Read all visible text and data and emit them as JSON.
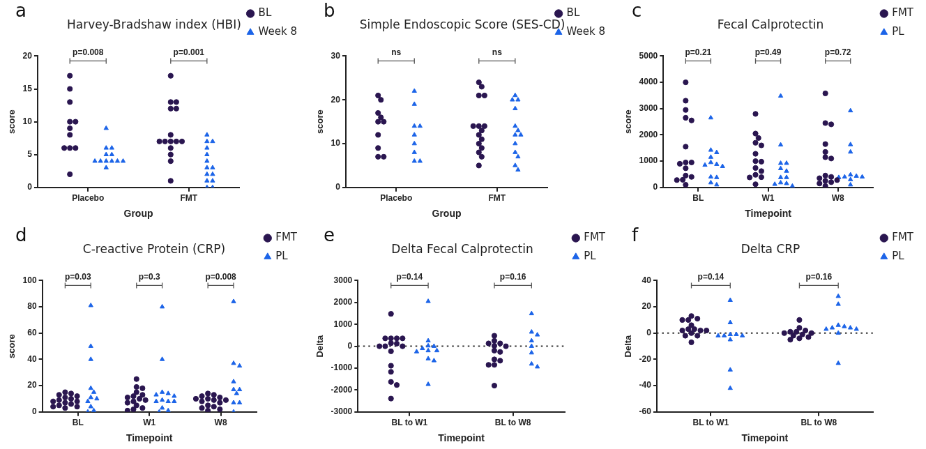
{
  "chart_data": [
    {
      "type": "scatter",
      "title": "Harvey-Bradshaw index (HBI)",
      "xlabel": "Group",
      "ylabel": "score",
      "categories": [
        "Placebo",
        "FMT"
      ],
      "ylim": [
        0,
        20
      ],
      "yticks": [
        0,
        5,
        10,
        15,
        20
      ],
      "legend": "right",
      "annotations": [
        "a",
        "p=0.008",
        "p=0.001"
      ],
      "series": [
        {
          "name": "BL",
          "color": "#2a1650",
          "marker": "circle",
          "x": [
            "Placebo",
            "Placebo",
            "Placebo",
            "Placebo",
            "Placebo",
            "Placebo",
            "Placebo",
            "Placebo",
            "Placebo",
            "Placebo",
            "Placebo",
            "FMT",
            "FMT",
            "FMT",
            "FMT",
            "FMT",
            "FMT",
            "FMT",
            "FMT",
            "FMT",
            "FMT",
            "FMT",
            "FMT",
            "FMT",
            "FMT",
            "FMT"
          ],
          "values": [
            17,
            15,
            13,
            10,
            10,
            9,
            8,
            6,
            6,
            6,
            2,
            17,
            13,
            13,
            12,
            12,
            8,
            7,
            7,
            7,
            7,
            7,
            6,
            5,
            4,
            1
          ]
        },
        {
          "name": "Week 8",
          "color": "#1c64e8",
          "marker": "triangle",
          "x": [
            "Placebo",
            "Placebo",
            "Placebo",
            "Placebo",
            "Placebo",
            "Placebo",
            "Placebo",
            "Placebo",
            "Placebo",
            "Placebo",
            "Placebo",
            "Placebo",
            "FMT",
            "FMT",
            "FMT",
            "FMT",
            "FMT",
            "FMT",
            "FMT",
            "FMT",
            "FMT",
            "FMT",
            "FMT",
            "FMT",
            "FMT",
            "FMT"
          ],
          "values": [
            9,
            6,
            6,
            5,
            5,
            4,
            4,
            4,
            4,
            4,
            4,
            3,
            8,
            7,
            7,
            6,
            5,
            4,
            3,
            3,
            2,
            2,
            1,
            1,
            0,
            0
          ]
        }
      ]
    },
    {
      "type": "scatter",
      "title": "Simple Endoscopic Score (SES-CD)",
      "xlabel": "Group",
      "ylabel": "score",
      "categories": [
        "Placebo",
        "FMT"
      ],
      "ylim": [
        0,
        30
      ],
      "yticks": [
        0,
        10,
        20,
        30
      ],
      "legend": "right",
      "annotations": [
        "b",
        "ns",
        "ns"
      ],
      "series": [
        {
          "name": "BL",
          "color": "#2a1650",
          "marker": "circle",
          "x": [
            "Placebo",
            "Placebo",
            "Placebo",
            "Placebo",
            "Placebo",
            "Placebo",
            "Placebo",
            "Placebo",
            "Placebo",
            "Placebo",
            "FMT",
            "FMT",
            "FMT",
            "FMT",
            "FMT",
            "FMT",
            "FMT",
            "FMT",
            "FMT",
            "FMT",
            "FMT",
            "FMT",
            "FMT",
            "FMT",
            "FMT"
          ],
          "values": [
            21,
            20,
            17,
            16,
            15,
            15,
            12,
            9,
            7,
            7,
            24,
            23,
            21,
            21,
            14,
            14,
            14,
            13,
            12,
            11,
            10,
            9,
            8,
            7,
            5
          ]
        },
        {
          "name": "Week 8",
          "color": "#1c64e8",
          "marker": "triangle",
          "x": [
            "Placebo",
            "Placebo",
            "Placebo",
            "Placebo",
            "Placebo",
            "Placebo",
            "Placebo",
            "Placebo",
            "Placebo",
            "FMT",
            "FMT",
            "FMT",
            "FMT",
            "FMT",
            "FMT",
            "FMT",
            "FMT",
            "FMT",
            "FMT",
            "FMT",
            "FMT",
            "FMT"
          ],
          "values": [
            22,
            19,
            14,
            14,
            12,
            10,
            8,
            6,
            6,
            21,
            20,
            20,
            18,
            14,
            13,
            12,
            12,
            10,
            8,
            7,
            5,
            4
          ]
        }
      ]
    },
    {
      "type": "scatter",
      "title": "Fecal Calprotectin",
      "xlabel": "Timepoint",
      "ylabel": "score",
      "categories": [
        "BL",
        "W1",
        "W8"
      ],
      "ylim": [
        0,
        5000
      ],
      "yticks": [
        0,
        1000,
        2000,
        3000,
        4000,
        5000
      ],
      "legend": "right",
      "annotations": [
        "c",
        "p=0.21",
        "p=0.49",
        "p=0.72"
      ],
      "series": [
        {
          "name": "FMT",
          "color": "#2a1650",
          "marker": "circle",
          "x": [
            "BL",
            "BL",
            "BL",
            "BL",
            "BL",
            "BL",
            "BL",
            "BL",
            "BL",
            "BL",
            "BL",
            "BL",
            "BL",
            "BL",
            "BL",
            "W1",
            "W1",
            "W1",
            "W1",
            "W1",
            "W1",
            "W1",
            "W1",
            "W1",
            "W1",
            "W1",
            "W1",
            "W1",
            "W1",
            "W8",
            "W8",
            "W8",
            "W8",
            "W8",
            "W8",
            "W8",
            "W8",
            "W8",
            "W8",
            "W8",
            "W8",
            "W8",
            "W8",
            "W8"
          ],
          "values": [
            4000,
            3300,
            2950,
            2650,
            2550,
            1550,
            950,
            950,
            900,
            730,
            450,
            400,
            290,
            280,
            100,
            2800,
            2050,
            1880,
            1700,
            1600,
            1280,
            1000,
            980,
            740,
            620,
            480,
            390,
            380,
            120,
            3580,
            2450,
            2400,
            1650,
            1350,
            1150,
            1100,
            450,
            400,
            350,
            280,
            250,
            200,
            150,
            50
          ]
        },
        {
          "name": "PL",
          "color": "#1c64e8",
          "marker": "triangle",
          "x": [
            "BL",
            "BL",
            "BL",
            "BL",
            "BL",
            "BL",
            "BL",
            "BL",
            "BL",
            "BL",
            "BL",
            "BL",
            "W1",
            "W1",
            "W1",
            "W1",
            "W1",
            "W1",
            "W1",
            "W1",
            "W1",
            "W1",
            "W1",
            "W1",
            "W8",
            "W8",
            "W8",
            "W8",
            "W8",
            "W8",
            "W8",
            "W8",
            "W8",
            "W8"
          ],
          "values": [
            2650,
            1420,
            1330,
            1150,
            950,
            880,
            850,
            800,
            400,
            380,
            180,
            100,
            3480,
            1620,
            920,
            920,
            720,
            620,
            380,
            380,
            180,
            150,
            120,
            50,
            2920,
            1630,
            1350,
            480,
            430,
            400,
            400,
            380,
            300,
            100
          ]
        }
      ]
    },
    {
      "type": "scatter",
      "title": "C-reactive Protein (CRP)",
      "xlabel": "Timepoint",
      "ylabel": "score",
      "categories": [
        "BL",
        "W1",
        "W8"
      ],
      "ylim": [
        0,
        100
      ],
      "yticks": [
        0,
        20,
        40,
        60,
        80,
        100
      ],
      "legend": "right",
      "annotations": [
        "d",
        "p=0.03",
        "p=0.3",
        "p=0.008"
      ],
      "series": [
        {
          "name": "FMT",
          "color": "#2a1650",
          "marker": "circle",
          "x": [
            "BL",
            "BL",
            "BL",
            "BL",
            "BL",
            "BL",
            "BL",
            "BL",
            "BL",
            "BL",
            "BL",
            "BL",
            "BL",
            "BL",
            "BL",
            "W1",
            "W1",
            "W1",
            "W1",
            "W1",
            "W1",
            "W1",
            "W1",
            "W1",
            "W1",
            "W1",
            "W1",
            "W1",
            "W1",
            "W1",
            "W8",
            "W8",
            "W8",
            "W8",
            "W8",
            "W8",
            "W8",
            "W8",
            "W8",
            "W8",
            "W8",
            "W8",
            "W8",
            "W8",
            "W8"
          ],
          "values": [
            15,
            14,
            13,
            12,
            11,
            10,
            9,
            8,
            8,
            7,
            6,
            5,
            4,
            4,
            3,
            25,
            19,
            18,
            15,
            13,
            12,
            11,
            10,
            9,
            8,
            7,
            5,
            3,
            2,
            1,
            14,
            13,
            12,
            11,
            10,
            10,
            9,
            9,
            8,
            7,
            5,
            4,
            3,
            2,
            1
          ]
        },
        {
          "name": "PL",
          "color": "#1c64e8",
          "marker": "triangle",
          "x": [
            "BL",
            "BL",
            "BL",
            "BL",
            "BL",
            "BL",
            "BL",
            "BL",
            "BL",
            "BL",
            "BL",
            "W1",
            "W1",
            "W1",
            "W1",
            "W1",
            "W1",
            "W1",
            "W1",
            "W1",
            "W1",
            "W1",
            "W1",
            "W1",
            "W8",
            "W8",
            "W8",
            "W8",
            "W8",
            "W8",
            "W8",
            "W8",
            "W8",
            "W8"
          ],
          "values": [
            81,
            50,
            40,
            18,
            15,
            11,
            10,
            8,
            4,
            1,
            0,
            80,
            40,
            15,
            14,
            13,
            12,
            9,
            8,
            8,
            8,
            3,
            1,
            0,
            84,
            37,
            35,
            23,
            17,
            17,
            14,
            7,
            7,
            0
          ]
        }
      ]
    },
    {
      "type": "scatter",
      "title": "Delta Fecal Calprotectin",
      "xlabel": "Timepoint",
      "ylabel": "Delta",
      "categories": [
        "BL to W1",
        "BL to W8"
      ],
      "ylim": [
        -3000,
        3000
      ],
      "yticks": [
        -3000,
        -2000,
        -1000,
        0,
        1000,
        2000,
        3000
      ],
      "legend": "right",
      "ref_lines": [
        {
          "axis": "y",
          "value": 0,
          "line_style": "dotted"
        }
      ],
      "annotations": [
        "e",
        "p=0.14",
        "p=0.16"
      ],
      "series": [
        {
          "name": "FMT",
          "color": "#2a1650",
          "marker": "circle",
          "x": [
            "BL to W1",
            "BL to W1",
            "BL to W1",
            "BL to W1",
            "BL to W1",
            "BL to W1",
            "BL to W1",
            "BL to W1",
            "BL to W1",
            "BL to W1",
            "BL to W1",
            "BL to W1",
            "BL to W1",
            "BL to W1",
            "BL to W1",
            "BL to W1",
            "BL to W8",
            "BL to W8",
            "BL to W8",
            "BL to W8",
            "BL to W8",
            "BL to W8",
            "BL to W8",
            "BL to W8",
            "BL to W8",
            "BL to W8",
            "BL to W8",
            "BL to W8",
            "BL to W8"
          ],
          "values": [
            1480,
            360,
            360,
            360,
            360,
            140,
            120,
            0,
            0,
            0,
            -230,
            -890,
            -1170,
            -1630,
            -1770,
            -2390,
            480,
            250,
            130,
            130,
            20,
            0,
            -200,
            -260,
            -600,
            -660,
            -850,
            -850,
            -1800
          ]
        },
        {
          "name": "PL",
          "color": "#1c64e8",
          "marker": "triangle",
          "x": [
            "BL to W1",
            "BL to W1",
            "BL to W1",
            "BL to W1",
            "BL to W1",
            "BL to W1",
            "BL to W1",
            "BL to W1",
            "BL to W1",
            "BL to W1",
            "BL to W1",
            "BL to W8",
            "BL to W8",
            "BL to W8",
            "BL to W8",
            "BL to W8",
            "BL to W8",
            "BL to W8",
            "BL to W8"
          ],
          "values": [
            2050,
            250,
            20,
            0,
            -100,
            -200,
            -200,
            -250,
            -570,
            -660,
            -1740,
            1490,
            650,
            520,
            250,
            0,
            -300,
            -810,
            -940
          ]
        }
      ]
    },
    {
      "type": "scatter",
      "title": "Delta CRP",
      "xlabel": "Timepoint",
      "ylabel": "Delta",
      "categories": [
        "BL to W1",
        "BL to W8"
      ],
      "ylim": [
        -60,
        40
      ],
      "yticks": [
        -60,
        -40,
        -20,
        0,
        20,
        40
      ],
      "legend": "right",
      "ref_lines": [
        {
          "axis": "y",
          "value": 0,
          "line_style": "dotted"
        }
      ],
      "annotations": [
        "f",
        "p=0.14",
        "p=0.16"
      ],
      "series": [
        {
          "name": "FMT",
          "color": "#2a1650",
          "marker": "circle",
          "x": [
            "BL to W1",
            "BL to W1",
            "BL to W1",
            "BL to W1",
            "BL to W1",
            "BL to W1",
            "BL to W1",
            "BL to W1",
            "BL to W1",
            "BL to W1",
            "BL to W1",
            "BL to W1",
            "BL to W1",
            "BL to W1",
            "BL to W8",
            "BL to W8",
            "BL to W8",
            "BL to W8",
            "BL to W8",
            "BL to W8",
            "BL to W8",
            "BL to W8",
            "BL to W8",
            "BL to W8",
            "BL to W8",
            "BL to W8"
          ],
          "values": [
            13,
            11,
            10,
            10,
            6,
            3,
            3,
            2,
            2,
            2,
            0,
            -2,
            -2,
            -7,
            10,
            4,
            2,
            1,
            1,
            0,
            0,
            -1,
            -2,
            -3,
            -4,
            -5
          ]
        },
        {
          "name": "PL",
          "color": "#1c64e8",
          "marker": "triangle",
          "x": [
            "BL to W1",
            "BL to W1",
            "BL to W1",
            "BL to W1",
            "BL to W1",
            "BL to W1",
            "BL to W1",
            "BL to W1",
            "BL to W1",
            "BL to W1",
            "BL to W8",
            "BL to W8",
            "BL to W8",
            "BL to W8",
            "BL to W8",
            "BL to W8",
            "BL to W8",
            "BL to W8",
            "BL to W8",
            "BL to W8"
          ],
          "values": [
            25,
            8,
            -1,
            -1,
            -2,
            -2,
            -2,
            -5,
            -28,
            -42,
            28,
            22,
            6,
            5,
            4,
            4,
            3,
            3,
            0,
            -23
          ]
        }
      ]
    }
  ]
}
